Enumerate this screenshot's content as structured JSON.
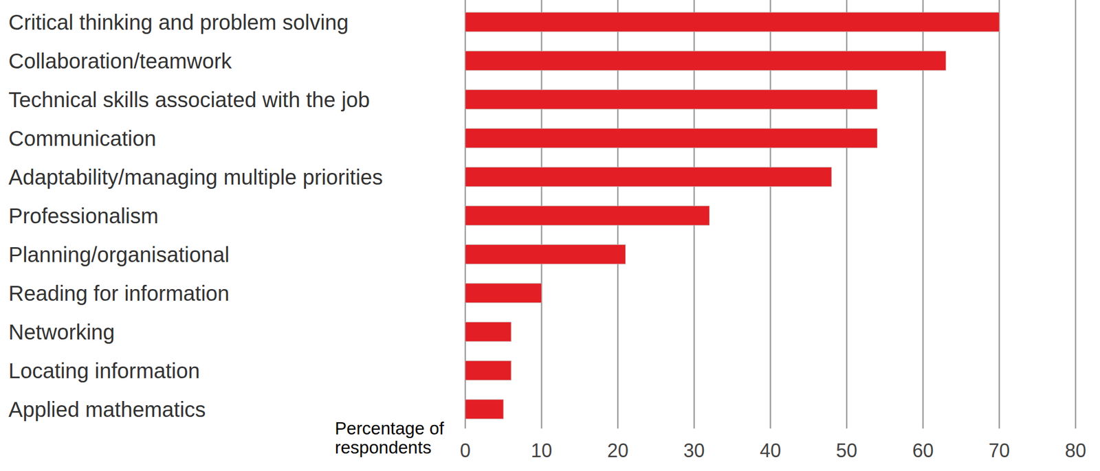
{
  "chart_data": {
    "type": "bar",
    "orientation": "horizontal",
    "categories": [
      "Critical thinking and problem solving",
      "Collaboration/teamwork",
      "Technical skills associated with the job",
      "Communication",
      "Adaptability/managing multiple priorities",
      "Professionalism",
      "Planning/organisational",
      "Reading for information",
      "Networking",
      "Locating information",
      "Applied mathematics"
    ],
    "values": [
      70,
      63,
      54,
      54,
      48,
      32,
      21,
      10,
      6,
      6,
      5
    ],
    "color": "#e31e24",
    "x_label": "Percentage of respondents",
    "xlim": [
      0,
      80
    ],
    "xticks": [
      0,
      10,
      20,
      30,
      40,
      50,
      60,
      70,
      80
    ],
    "grid": true
  }
}
